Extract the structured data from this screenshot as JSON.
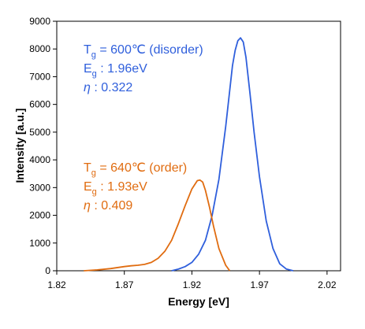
{
  "chart_data": {
    "type": "line",
    "xlabel": "Energy [eV]",
    "ylabel": "Intensity [a.u.]",
    "xlim": [
      1.82,
      2.03
    ],
    "ylim": [
      0,
      9000
    ],
    "x_ticks": [
      "1.82",
      "1.87",
      "1.92",
      "1.97",
      "2.02"
    ],
    "y_ticks": [
      "0",
      "1000",
      "2000",
      "3000",
      "4000",
      "5000",
      "6000",
      "7000",
      "8000",
      "9000"
    ],
    "grid": false,
    "legend": "none",
    "series": [
      {
        "color": "#2f5fdc",
        "x": [
          1.905,
          1.91,
          1.915,
          1.92,
          1.925,
          1.93,
          1.935,
          1.94,
          1.945,
          1.95,
          1.952,
          1.954,
          1.956,
          1.958,
          1.96,
          1.963,
          1.966,
          1.97,
          1.975,
          1.98,
          1.985,
          1.99,
          1.995
        ],
        "y": [
          0,
          60,
          150,
          300,
          600,
          1100,
          2000,
          3300,
          5200,
          7400,
          7950,
          8300,
          8400,
          8250,
          7700,
          6400,
          5000,
          3400,
          1800,
          800,
          250,
          60,
          0
        ]
      },
      {
        "color": "#e06c10",
        "x": [
          1.84,
          1.85,
          1.86,
          1.87,
          1.875,
          1.88,
          1.885,
          1.89,
          1.895,
          1.9,
          1.905,
          1.91,
          1.915,
          1.92,
          1.924,
          1.926,
          1.928,
          1.93,
          1.933,
          1.936,
          1.94,
          1.945,
          1.948
        ],
        "y": [
          0,
          30,
          80,
          150,
          180,
          200,
          230,
          300,
          450,
          700,
          1100,
          1700,
          2350,
          2950,
          3250,
          3270,
          3200,
          2900,
          2300,
          1600,
          800,
          200,
          0
        ]
      }
    ],
    "annotations": [
      {
        "color": "#2f5fdc",
        "lines": [
          {
            "main": "T",
            "sub": "g",
            "rest": " = 600℃ (disorder)"
          },
          {
            "main": "E",
            "sub": "g",
            "rest": "  : 1.96eV"
          },
          {
            "main": "η",
            "sub": "",
            "rest": "   : 0.322"
          }
        ]
      },
      {
        "color": "#e06c10",
        "lines": [
          {
            "main": "T",
            "sub": "g",
            "rest": " = 640℃ (order)"
          },
          {
            "main": "E",
            "sub": "g",
            "rest": "  : 1.93eV"
          },
          {
            "main": "η",
            "sub": "",
            "rest": "   : 0.409"
          }
        ]
      }
    ]
  }
}
